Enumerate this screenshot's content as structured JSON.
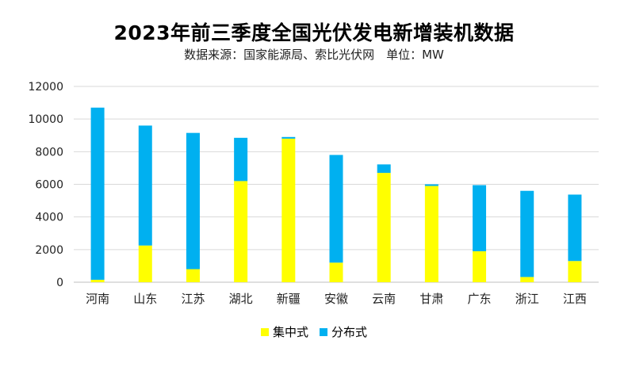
{
  "chart_data": {
    "type": "bar",
    "stacked": true,
    "title": "2023年前三季度全国光伏发电新增装机数据",
    "subtitle": "数据来源：国家能源局、索比光伏网　单位：MW",
    "categories": [
      "河南",
      "山东",
      "江苏",
      "湖北",
      "新疆",
      "安徽",
      "云南",
      "甘肃",
      "广东",
      "浙江",
      "江西"
    ],
    "series": [
      {
        "name": "集中式",
        "color": "#FFFF00",
        "values": [
          150,
          2250,
          800,
          6200,
          8800,
          1200,
          6700,
          5900,
          1900,
          320,
          1300
        ]
      },
      {
        "name": "分布式",
        "color": "#00B0F0",
        "values": [
          10550,
          7350,
          8350,
          2650,
          100,
          6600,
          520,
          100,
          4050,
          5280,
          4070
        ]
      }
    ],
    "ylim": [
      0,
      12000
    ],
    "yticks": [
      0,
      2000,
      4000,
      6000,
      8000,
      10000,
      12000
    ],
    "grid": true,
    "legend": "bottom"
  }
}
